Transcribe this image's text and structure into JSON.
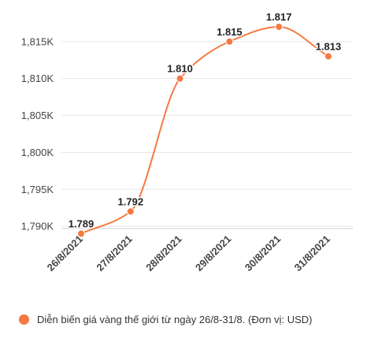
{
  "colors": {
    "series": "#f47a42",
    "grid": "#e6e6e6",
    "axis_line": "#cfcfcf",
    "text": "#444444"
  },
  "chart_data": {
    "type": "line",
    "smooth": true,
    "categories": [
      "26/8/2021",
      "27/8/2021",
      "28/8/2021",
      "29/8/2021",
      "30/8/2021",
      "31/8/2021"
    ],
    "series": [
      {
        "name": "Diễn biến giá vàng thế giới từ ngày 26/8-31/8. (Đơn vị: USD)",
        "values": [
          1789,
          1792,
          1810,
          1815,
          1817,
          1813
        ],
        "data_labels": [
          "1.789",
          "1.792",
          "1.810",
          "1.815",
          "1.817",
          "1.813"
        ]
      }
    ],
    "y_ticks": [
      1790,
      1795,
      1800,
      1805,
      1810,
      1815
    ],
    "y_tick_labels": [
      "1,790K",
      "1,795K",
      "1,800K",
      "1,805K",
      "1,810K",
      "1,815K"
    ],
    "ylim": [
      1788.2,
      1818.6
    ],
    "grid": true,
    "legend_position": "bottom-left"
  }
}
